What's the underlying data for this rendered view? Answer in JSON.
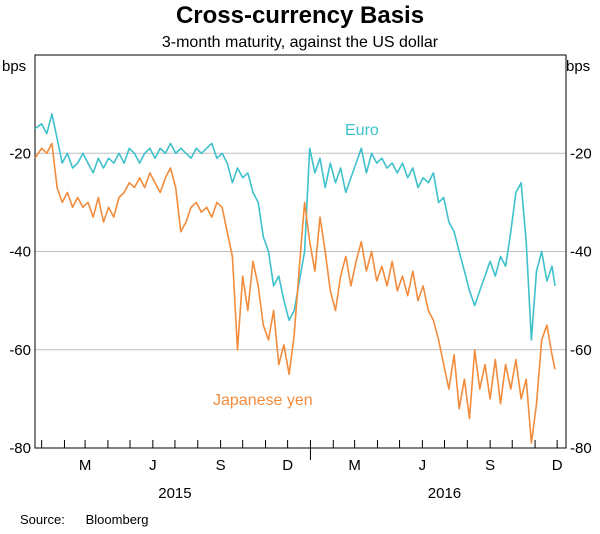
{
  "chart_data": {
    "type": "line",
    "title": "Cross-currency Basis",
    "subtitle": "3-month maturity, against the US dollar",
    "yunit_left": "bps",
    "yunit_right": "bps",
    "ylim": [
      -80,
      0
    ],
    "yticks": [
      -20,
      -40,
      -60,
      -80
    ],
    "ytick_labels": [
      "-20",
      "-40",
      "-60",
      "-80"
    ],
    "xlim": [
      "2014-12-23",
      "2016-12-13"
    ],
    "xticks": [
      {
        "label": "M",
        "date": "2015-03-01"
      },
      {
        "label": "J",
        "date": "2015-06-01"
      },
      {
        "label": "S",
        "date": "2015-09-01"
      },
      {
        "label": "D",
        "date": "2015-12-01"
      },
      {
        "label": "M",
        "date": "2016-03-01"
      },
      {
        "label": "J",
        "date": "2016-06-01"
      },
      {
        "label": "S",
        "date": "2016-09-01"
      },
      {
        "label": "D",
        "date": "2016-12-01"
      }
    ],
    "year_labels": [
      {
        "label": "2015",
        "date": "2015-07-01"
      },
      {
        "label": "2016",
        "date": "2016-07-01"
      }
    ],
    "grid": true,
    "colors": {
      "euro": "#3fc1cc",
      "yen": "#f28c3c",
      "grid": "#bfbfbf"
    },
    "series": [
      {
        "name": "Euro",
        "key": "euro",
        "points": [
          [
            "2014-12-23",
            -15
          ],
          [
            "2015-01-01",
            -14
          ],
          [
            "2015-01-08",
            -16
          ],
          [
            "2015-01-15",
            -12
          ],
          [
            "2015-01-22",
            -17
          ],
          [
            "2015-01-29",
            -22
          ],
          [
            "2015-02-05",
            -20
          ],
          [
            "2015-02-12",
            -23
          ],
          [
            "2015-02-19",
            -22
          ],
          [
            "2015-02-26",
            -20
          ],
          [
            "2015-03-05",
            -22
          ],
          [
            "2015-03-12",
            -24
          ],
          [
            "2015-03-19",
            -21
          ],
          [
            "2015-03-26",
            -23
          ],
          [
            "2015-04-02",
            -21
          ],
          [
            "2015-04-09",
            -22
          ],
          [
            "2015-04-16",
            -20
          ],
          [
            "2015-04-23",
            -22
          ],
          [
            "2015-04-30",
            -19
          ],
          [
            "2015-05-07",
            -20
          ],
          [
            "2015-05-14",
            -22
          ],
          [
            "2015-05-21",
            -20
          ],
          [
            "2015-05-28",
            -19
          ],
          [
            "2015-06-04",
            -21
          ],
          [
            "2015-06-11",
            -19
          ],
          [
            "2015-06-18",
            -20
          ],
          [
            "2015-06-25",
            -18
          ],
          [
            "2015-07-02",
            -20
          ],
          [
            "2015-07-09",
            -19
          ],
          [
            "2015-07-16",
            -20
          ],
          [
            "2015-07-23",
            -21
          ],
          [
            "2015-07-30",
            -19
          ],
          [
            "2015-08-06",
            -20
          ],
          [
            "2015-08-13",
            -19
          ],
          [
            "2015-08-20",
            -18
          ],
          [
            "2015-08-27",
            -21
          ],
          [
            "2015-09-03",
            -20
          ],
          [
            "2015-09-10",
            -22
          ],
          [
            "2015-09-17",
            -26
          ],
          [
            "2015-09-24",
            -23
          ],
          [
            "2015-10-01",
            -25
          ],
          [
            "2015-10-08",
            -24
          ],
          [
            "2015-10-15",
            -28
          ],
          [
            "2015-10-22",
            -30
          ],
          [
            "2015-10-29",
            -37
          ],
          [
            "2015-11-05",
            -40
          ],
          [
            "2015-11-12",
            -47
          ],
          [
            "2015-11-19",
            -45
          ],
          [
            "2015-11-26",
            -50
          ],
          [
            "2015-12-03",
            -54
          ],
          [
            "2015-12-10",
            -52
          ],
          [
            "2015-12-17",
            -46
          ],
          [
            "2015-12-24",
            -40
          ],
          [
            "2015-12-31",
            -19
          ],
          [
            "2016-01-07",
            -24
          ],
          [
            "2016-01-14",
            -21
          ],
          [
            "2016-01-21",
            -27
          ],
          [
            "2016-01-28",
            -22
          ],
          [
            "2016-02-04",
            -26
          ],
          [
            "2016-02-11",
            -23
          ],
          [
            "2016-02-18",
            -28
          ],
          [
            "2016-02-25",
            -25
          ],
          [
            "2016-03-03",
            -22
          ],
          [
            "2016-03-10",
            -19
          ],
          [
            "2016-03-17",
            -24
          ],
          [
            "2016-03-24",
            -20
          ],
          [
            "2016-03-31",
            -22
          ],
          [
            "2016-04-07",
            -21
          ],
          [
            "2016-04-14",
            -23
          ],
          [
            "2016-04-21",
            -22
          ],
          [
            "2016-04-28",
            -24
          ],
          [
            "2016-05-05",
            -22
          ],
          [
            "2016-05-12",
            -25
          ],
          [
            "2016-05-19",
            -23
          ],
          [
            "2016-05-26",
            -27
          ],
          [
            "2016-06-02",
            -25
          ],
          [
            "2016-06-09",
            -26
          ],
          [
            "2016-06-16",
            -24
          ],
          [
            "2016-06-23",
            -30
          ],
          [
            "2016-06-30",
            -29
          ],
          [
            "2016-07-07",
            -34
          ],
          [
            "2016-07-14",
            -36
          ],
          [
            "2016-07-21",
            -40
          ],
          [
            "2016-07-28",
            -44
          ],
          [
            "2016-08-04",
            -48
          ],
          [
            "2016-08-11",
            -51
          ],
          [
            "2016-08-18",
            -48
          ],
          [
            "2016-08-25",
            -45
          ],
          [
            "2016-09-01",
            -42
          ],
          [
            "2016-09-08",
            -45
          ],
          [
            "2016-09-15",
            -41
          ],
          [
            "2016-09-22",
            -43
          ],
          [
            "2016-09-29",
            -36
          ],
          [
            "2016-10-06",
            -28
          ],
          [
            "2016-10-13",
            -26
          ],
          [
            "2016-10-20",
            -38
          ],
          [
            "2016-10-27",
            -58
          ],
          [
            "2016-11-03",
            -44
          ],
          [
            "2016-11-10",
            -40
          ],
          [
            "2016-11-17",
            -46
          ],
          [
            "2016-11-24",
            -43
          ],
          [
            "2016-11-28",
            -47
          ]
        ]
      },
      {
        "name": "Japanese yen",
        "key": "yen",
        "points": [
          [
            "2014-12-23",
            -21
          ],
          [
            "2015-01-01",
            -19
          ],
          [
            "2015-01-08",
            -20
          ],
          [
            "2015-01-15",
            -18
          ],
          [
            "2015-01-22",
            -27
          ],
          [
            "2015-01-29",
            -30
          ],
          [
            "2015-02-05",
            -28
          ],
          [
            "2015-02-12",
            -31
          ],
          [
            "2015-02-19",
            -29
          ],
          [
            "2015-02-26",
            -31
          ],
          [
            "2015-03-05",
            -30
          ],
          [
            "2015-03-12",
            -33
          ],
          [
            "2015-03-19",
            -29
          ],
          [
            "2015-03-26",
            -34
          ],
          [
            "2015-04-02",
            -31
          ],
          [
            "2015-04-09",
            -33
          ],
          [
            "2015-04-16",
            -29
          ],
          [
            "2015-04-23",
            -28
          ],
          [
            "2015-04-30",
            -26
          ],
          [
            "2015-05-07",
            -27
          ],
          [
            "2015-05-14",
            -25
          ],
          [
            "2015-05-21",
            -27
          ],
          [
            "2015-05-28",
            -24
          ],
          [
            "2015-06-04",
            -26
          ],
          [
            "2015-06-11",
            -28
          ],
          [
            "2015-06-18",
            -25
          ],
          [
            "2015-06-25",
            -23
          ],
          [
            "2015-07-02",
            -27
          ],
          [
            "2015-07-09",
            -36
          ],
          [
            "2015-07-16",
            -34
          ],
          [
            "2015-07-23",
            -31
          ],
          [
            "2015-07-30",
            -30
          ],
          [
            "2015-08-06",
            -32
          ],
          [
            "2015-08-13",
            -31
          ],
          [
            "2015-08-20",
            -33
          ],
          [
            "2015-08-27",
            -30
          ],
          [
            "2015-09-03",
            -31
          ],
          [
            "2015-09-10",
            -36
          ],
          [
            "2015-09-17",
            -41
          ],
          [
            "2015-09-24",
            -60
          ],
          [
            "2015-10-01",
            -45
          ],
          [
            "2015-10-08",
            -52
          ],
          [
            "2015-10-15",
            -42
          ],
          [
            "2015-10-22",
            -47
          ],
          [
            "2015-10-29",
            -55
          ],
          [
            "2015-11-05",
            -58
          ],
          [
            "2015-11-12",
            -52
          ],
          [
            "2015-11-19",
            -63
          ],
          [
            "2015-11-26",
            -59
          ],
          [
            "2015-12-03",
            -65
          ],
          [
            "2015-12-10",
            -57
          ],
          [
            "2015-12-17",
            -43
          ],
          [
            "2015-12-24",
            -30
          ],
          [
            "2015-12-31",
            -38
          ],
          [
            "2016-01-07",
            -44
          ],
          [
            "2016-01-14",
            -33
          ],
          [
            "2016-01-21",
            -40
          ],
          [
            "2016-01-28",
            -48
          ],
          [
            "2016-02-04",
            -52
          ],
          [
            "2016-02-11",
            -45
          ],
          [
            "2016-02-18",
            -41
          ],
          [
            "2016-02-25",
            -47
          ],
          [
            "2016-03-03",
            -42
          ],
          [
            "2016-03-10",
            -38
          ],
          [
            "2016-03-17",
            -44
          ],
          [
            "2016-03-24",
            -40
          ],
          [
            "2016-03-31",
            -46
          ],
          [
            "2016-04-07",
            -43
          ],
          [
            "2016-04-14",
            -47
          ],
          [
            "2016-04-21",
            -42
          ],
          [
            "2016-04-28",
            -48
          ],
          [
            "2016-05-05",
            -45
          ],
          [
            "2016-05-12",
            -49
          ],
          [
            "2016-05-19",
            -44
          ],
          [
            "2016-05-26",
            -50
          ],
          [
            "2016-06-02",
            -47
          ],
          [
            "2016-06-09",
            -52
          ],
          [
            "2016-06-16",
            -54
          ],
          [
            "2016-06-23",
            -58
          ],
          [
            "2016-06-30",
            -63
          ],
          [
            "2016-07-07",
            -68
          ],
          [
            "2016-07-14",
            -61
          ],
          [
            "2016-07-21",
            -72
          ],
          [
            "2016-07-28",
            -66
          ],
          [
            "2016-08-04",
            -74
          ],
          [
            "2016-08-11",
            -60
          ],
          [
            "2016-08-18",
            -68
          ],
          [
            "2016-08-25",
            -63
          ],
          [
            "2016-09-01",
            -70
          ],
          [
            "2016-09-08",
            -62
          ],
          [
            "2016-09-15",
            -71
          ],
          [
            "2016-09-22",
            -63
          ],
          [
            "2016-09-29",
            -68
          ],
          [
            "2016-10-06",
            -62
          ],
          [
            "2016-10-13",
            -70
          ],
          [
            "2016-10-20",
            -66
          ],
          [
            "2016-10-27",
            -79
          ],
          [
            "2016-11-03",
            -71
          ],
          [
            "2016-11-10",
            -58
          ],
          [
            "2016-11-17",
            -55
          ],
          [
            "2016-11-24",
            -61
          ],
          [
            "2016-11-28",
            -64
          ]
        ]
      }
    ],
    "series_labels": [
      {
        "key": "euro",
        "text": "Euro"
      },
      {
        "key": "yen",
        "text": "Japanese yen"
      }
    ]
  },
  "source": {
    "label": "Source:",
    "value": "Bloomberg"
  }
}
